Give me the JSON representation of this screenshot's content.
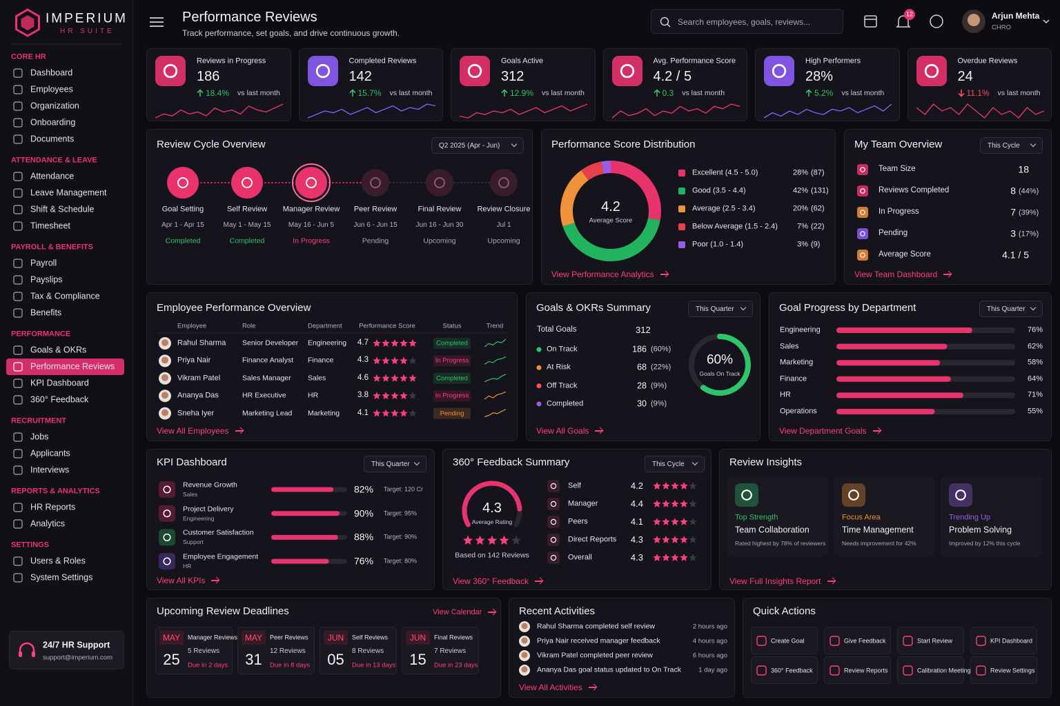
{
  "brand": {
    "name": "IMPERIUM",
    "tagline": "HR SUITE"
  },
  "nav": [
    {
      "section": "CORE HR",
      "items": [
        {
          "label": "Dashboard"
        },
        {
          "label": "Employees"
        },
        {
          "label": "Organization"
        },
        {
          "label": "Onboarding"
        },
        {
          "label": "Documents"
        }
      ]
    },
    {
      "section": "ATTENDANCE & LEAVE",
      "items": [
        {
          "label": "Attendance"
        },
        {
          "label": "Leave Management"
        },
        {
          "label": "Shift & Schedule"
        },
        {
          "label": "Timesheet"
        }
      ]
    },
    {
      "section": "PAYROLL & BENEFITS",
      "items": [
        {
          "label": "Payroll"
        },
        {
          "label": "Payslips"
        },
        {
          "label": "Tax & Compliance"
        },
        {
          "label": "Benefits"
        }
      ]
    },
    {
      "section": "PERFORMANCE",
      "items": [
        {
          "label": "Goals & OKRs"
        },
        {
          "label": "Performance Reviews",
          "active": true
        },
        {
          "label": "KPI Dashboard"
        },
        {
          "label": "360° Feedback"
        }
      ]
    },
    {
      "section": "RECRUITMENT",
      "items": [
        {
          "label": "Jobs"
        },
        {
          "label": "Applicants"
        },
        {
          "label": "Interviews"
        }
      ]
    },
    {
      "section": "REPORTS & ANALYTICS",
      "items": [
        {
          "label": "HR Reports"
        },
        {
          "label": "Analytics"
        }
      ]
    },
    {
      "section": "SETTINGS",
      "items": [
        {
          "label": "Users & Roles"
        },
        {
          "label": "System Settings"
        }
      ]
    }
  ],
  "support": {
    "title": "24/7 HR Support",
    "email": "support@imperium.com"
  },
  "header": {
    "title": "Performance Reviews",
    "subtitle": "Track performance, set goals, and drive continuous growth.",
    "search_placeholder": "Search employees, goals, reviews...",
    "notifications": 12,
    "user": {
      "name": "Arjun Mehta",
      "role": "CHRO"
    }
  },
  "stat_cards": [
    {
      "label": "Reviews in Progress",
      "value": "186",
      "change": "18.4%",
      "direction": "up",
      "note": "vs last month",
      "color": "#e8336d",
      "trend": [
        5,
        7,
        6,
        9,
        7,
        8,
        6,
        10,
        8,
        9,
        7,
        11,
        9,
        8,
        10,
        12
      ]
    },
    {
      "label": "Completed Reviews",
      "value": "142",
      "change": "15.7%",
      "direction": "up",
      "note": "vs last month",
      "color": "#8b5cf6",
      "trend": [
        4,
        6,
        8,
        7,
        9,
        6,
        8,
        10,
        7,
        9,
        11,
        8,
        10,
        9,
        12,
        11
      ]
    },
    {
      "label": "Goals Active",
      "value": "312",
      "change": "12.9%",
      "direction": "up",
      "note": "vs last month",
      "color": "#e8336d",
      "trend": [
        6,
        5,
        8,
        7,
        9,
        8,
        10,
        7,
        9,
        11,
        8,
        10,
        12,
        9,
        11,
        13
      ]
    },
    {
      "label": "Avg. Performance Score",
      "value": "4.2 / 5",
      "change": "0.3",
      "direction": "up",
      "note": "vs last month",
      "color": "#e8336d",
      "trend": [
        5,
        8,
        6,
        7,
        9,
        6,
        8,
        7,
        10,
        8,
        9,
        7,
        10,
        9,
        11,
        10
      ]
    },
    {
      "label": "High Performers",
      "value": "28%",
      "change": "5.2%",
      "direction": "up",
      "note": "vs last month",
      "color": "#8b5cf6",
      "trend": [
        4,
        7,
        5,
        8,
        6,
        9,
        7,
        6,
        9,
        8,
        10,
        7,
        9,
        11,
        8,
        12
      ]
    },
    {
      "label": "Overdue Reviews",
      "value": "24",
      "change": "11.1%",
      "direction": "down",
      "note": "vs last month",
      "color": "#e8336d",
      "trend": [
        9,
        7,
        10,
        8,
        9,
        7,
        10,
        8,
        6,
        9,
        7,
        8,
        6,
        9,
        7,
        8
      ]
    }
  ],
  "review_cycle": {
    "title": "Review Cycle Overview",
    "period": "Q2 2025 (Apr - Jun)",
    "stages": [
      {
        "name": "Goal Setting",
        "dates": "Apr 1 - Apr 15",
        "status": "Completed",
        "state": "done"
      },
      {
        "name": "Self Review",
        "dates": "May 1 - May 15",
        "status": "Completed",
        "state": "done"
      },
      {
        "name": "Manager Review",
        "dates": "May 16 - Jun 5",
        "status": "In Progress",
        "state": "active"
      },
      {
        "name": "Peer Review",
        "dates": "Jun 6 - Jun 15",
        "status": "Pending",
        "state": "upcoming"
      },
      {
        "name": "Final Review",
        "dates": "Jun 16 - Jun 30",
        "status": "Upcoming",
        "state": "upcoming"
      },
      {
        "name": "Review Closure",
        "dates": "Jul 1",
        "status": "Upcoming",
        "state": "upcoming"
      }
    ]
  },
  "score_distribution": {
    "title": "Performance Score Distribution",
    "center_value": "4.2",
    "center_label": "Average Score",
    "link": "View Performance Analytics",
    "segments": [
      {
        "name": "Excellent (4.5 - 5.0)",
        "value": 28,
        "value_label": "28%",
        "count_label": "(87)",
        "color": "#e8336d"
      },
      {
        "name": "Good (3.5 - 4.4)",
        "value": 42,
        "value_label": "42%",
        "count_label": "(131)",
        "color": "#22b35e"
      },
      {
        "name": "Average (2.5 - 3.4)",
        "value": 20,
        "value_label": "20%",
        "count_label": "(62)",
        "color": "#f0923a"
      },
      {
        "name": "Below Average (1.5 - 2.4)",
        "value": 7,
        "value_label": "7%",
        "count_label": "(22)",
        "color": "#e8404a"
      },
      {
        "name": "Poor (1.0 - 1.4)",
        "value": 3,
        "value_label": "3%",
        "count_label": "(9)",
        "color": "#9b5de5"
      }
    ]
  },
  "team_overview": {
    "title": "My Team Overview",
    "period": "This Cycle",
    "link": "View Team Dashboard",
    "rows": [
      {
        "label": "Team Size",
        "value": "18",
        "color": "#e8336d"
      },
      {
        "label": "Reviews Completed",
        "value": "8",
        "pct": "(44%)",
        "color": "#e8336d"
      },
      {
        "label": "In Progress",
        "value": "7",
        "pct": "(39%)",
        "color": "#f0923a"
      },
      {
        "label": "Pending",
        "value": "3",
        "pct": "(17%)",
        "color": "#8b5cf6"
      },
      {
        "label": "Average Score",
        "value": "4.1 / 5",
        "color": "#f0923a"
      }
    ]
  },
  "employees": {
    "title": "Employee Performance Overview",
    "columns": [
      "Employee",
      "Role",
      "Department",
      "Performance Score",
      "Status",
      "Trend"
    ],
    "link": "View All Employees",
    "rows": [
      {
        "name": "Rahul Sharma",
        "role": "Senior Developer",
        "department": "Engineering",
        "score": 4.7,
        "status": "Completed",
        "tone": "green",
        "trend": [
          2,
          3,
          2.6,
          3.6,
          3.3,
          4.4
        ],
        "trend_color": "#2ec46a"
      },
      {
        "name": "Priya Nair",
        "role": "Finance Analyst",
        "department": "Finance",
        "score": 4.3,
        "status": "In Progress",
        "tone": "pink",
        "trend": [
          2,
          2.8,
          2.5,
          3.4,
          3.6,
          4.2
        ],
        "trend_color": "#2ec46a"
      },
      {
        "name": "Vikram Patel",
        "role": "Sales Manager",
        "department": "Sales",
        "score": 4.6,
        "status": "Completed",
        "tone": "green",
        "trend": [
          2,
          2.6,
          3,
          2.8,
          3.7,
          4.3
        ],
        "trend_color": "#2ec46a"
      },
      {
        "name": "Ananya Das",
        "role": "HR Executive",
        "department": "HR",
        "score": 3.8,
        "status": "In Progress",
        "tone": "pink",
        "trend": [
          2,
          2.9,
          2.4,
          3.2,
          3.5,
          4
        ],
        "trend_color": "#f0923a"
      },
      {
        "name": "Sneha Iyer",
        "role": "Marketing Lead",
        "department": "Marketing",
        "score": 4.1,
        "status": "Pending",
        "tone": "orange",
        "trend": [
          2,
          2.4,
          3.1,
          2.9,
          3.5,
          4.1
        ],
        "trend_color": "#f0923a"
      }
    ]
  },
  "goals": {
    "title": "Goals & OKRs Summary",
    "period": "This Quarter",
    "total_label": "Total Goals",
    "total": "312",
    "link": "View All Goals",
    "ring_value": 60,
    "ring_label": "60%",
    "ring_caption": "Goals On Track",
    "rows": [
      {
        "label": "On Track",
        "value": "186",
        "pct": "(60%)",
        "color": "#2ec46a"
      },
      {
        "label": "At Risk",
        "value": "68",
        "pct": "(22%)",
        "color": "#f0923a"
      },
      {
        "label": "Off Track",
        "value": "28",
        "pct": "(9%)",
        "color": "#ff4d5e"
      },
      {
        "label": "Completed",
        "value": "30",
        "pct": "(9%)",
        "color": "#9b5de5"
      }
    ]
  },
  "goal_progress": {
    "title": "Goal Progress by Department",
    "period": "This Quarter",
    "link": "View Department Goals",
    "color": "#e8336d",
    "categories": [
      "Engineering",
      "Sales",
      "Marketing",
      "Finance",
      "HR",
      "Operations"
    ],
    "values": [
      76,
      62,
      58,
      64,
      71,
      55
    ],
    "value_labels": [
      "76%",
      "62%",
      "58%",
      "64%",
      "71%",
      "55%"
    ]
  },
  "kpi": {
    "title": "KPI Dashboard",
    "period": "This Quarter",
    "link": "View All KPIs",
    "items": [
      {
        "name": "Revenue Growth",
        "dept": "Sales",
        "value": 82,
        "value_label": "82%",
        "target": "Target: 120 Cr",
        "color": "#e8336d"
      },
      {
        "name": "Project Delivery",
        "dept": "Engineering",
        "value": 90,
        "value_label": "90%",
        "target": "Target: 95%",
        "color": "#e8336d"
      },
      {
        "name": "Customer Satisfaction",
        "dept": "Support",
        "value": 88,
        "value_label": "88%",
        "target": "Target: 90%",
        "color": "#2ec46a"
      },
      {
        "name": "Employee Engagement",
        "dept": "HR",
        "value": 76,
        "value_label": "76%",
        "target": "Target: 80%",
        "color": "#8b5cf6"
      }
    ]
  },
  "feedback": {
    "title": "360° Feedback Summary",
    "period": "This Cycle",
    "rating": 4.3,
    "rating_label": "Average Rating",
    "basis": "Based on 142 Reviews",
    "link": "View 360° Feedback",
    "rows": [
      {
        "label": "Self",
        "value": 4.2
      },
      {
        "label": "Manager",
        "value": 4.4
      },
      {
        "label": "Peers",
        "value": 4.1
      },
      {
        "label": "Direct Reports",
        "value": 4.3
      },
      {
        "label": "Overall",
        "value": 4.3
      }
    ]
  },
  "insights": {
    "title": "Review Insights",
    "link": "View Full Insights Report",
    "cards": [
      {
        "kicker": "Top Strength",
        "title": "Team Collaboration",
        "note": "Rated highest by 78% of reviewers",
        "color": "#2ec46a"
      },
      {
        "kicker": "Focus Area",
        "title": "Time Management",
        "note": "Needs improvement for 42%",
        "color": "#f0923a"
      },
      {
        "kicker": "Trending Up",
        "title": "Problem Solving",
        "note": "Improved by 12% this cycle",
        "color": "#9b5de5"
      }
    ]
  },
  "deadlines": {
    "title": "Upcoming Review Deadlines",
    "link": "View Calendar",
    "items": [
      {
        "month": "MAY",
        "day": "25",
        "type": "Manager Reviews",
        "count": "5 Reviews",
        "due": "Due in 2 days"
      },
      {
        "month": "MAY",
        "day": "31",
        "type": "Peer Reviews",
        "count": "12 Reviews",
        "due": "Due in 8 days"
      },
      {
        "month": "JUN",
        "day": "05",
        "type": "Self Reviews",
        "count": "8 Reviews",
        "due": "Due in 13 days"
      },
      {
        "month": "JUN",
        "day": "15",
        "type": "Final Reviews",
        "count": "7 Reviews",
        "due": "Due in 23 days"
      }
    ]
  },
  "activities": {
    "title": "Recent Activities",
    "link": "View All Activities",
    "items": [
      {
        "text": "Rahul Sharma completed self review",
        "time": "2 hours ago"
      },
      {
        "text": "Priya Nair received manager feedback",
        "time": "4 hours ago"
      },
      {
        "text": "Vikram Patel completed peer review",
        "time": "6 hours ago"
      },
      {
        "text": "Ananya Das goal status updated to On Track",
        "time": "1 day ago"
      }
    ]
  },
  "quick_actions": {
    "title": "Quick Actions",
    "items": [
      "Create Goal",
      "Give Feedback",
      "Start Review",
      "KPI Dashboard",
      "360° Feedback",
      "Review Reports",
      "Calibration Meeting",
      "Review Settings"
    ]
  }
}
